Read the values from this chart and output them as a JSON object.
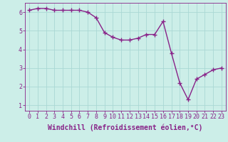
{
  "x": [
    0,
    1,
    2,
    3,
    4,
    5,
    6,
    7,
    8,
    9,
    10,
    11,
    12,
    13,
    14,
    15,
    16,
    17,
    18,
    19,
    20,
    21,
    22,
    23
  ],
  "y": [
    6.1,
    6.2,
    6.2,
    6.1,
    6.1,
    6.1,
    6.1,
    6.0,
    5.7,
    4.9,
    4.65,
    4.5,
    4.5,
    4.6,
    4.8,
    4.8,
    5.5,
    3.8,
    2.2,
    1.3,
    2.4,
    2.65,
    2.9,
    3.0
  ],
  "line_color": "#882288",
  "marker": "+",
  "marker_size": 4,
  "marker_lw": 1.0,
  "bg_color": "#cceee8",
  "grid_color": "#aad8d4",
  "xlabel": "Windchill (Refroidissement éolien,°C)",
  "xlim": [
    -0.5,
    23.5
  ],
  "ylim": [
    0.7,
    6.5
  ],
  "yticks": [
    1,
    2,
    3,
    4,
    5,
    6
  ],
  "xticks": [
    0,
    1,
    2,
    3,
    4,
    5,
    6,
    7,
    8,
    9,
    10,
    11,
    12,
    13,
    14,
    15,
    16,
    17,
    18,
    19,
    20,
    21,
    22,
    23
  ],
  "tick_color": "#882288",
  "label_color": "#882288",
  "axis_color": "#882288",
  "tick_fontsize": 6,
  "xlabel_fontsize": 7,
  "line_width": 1.0
}
